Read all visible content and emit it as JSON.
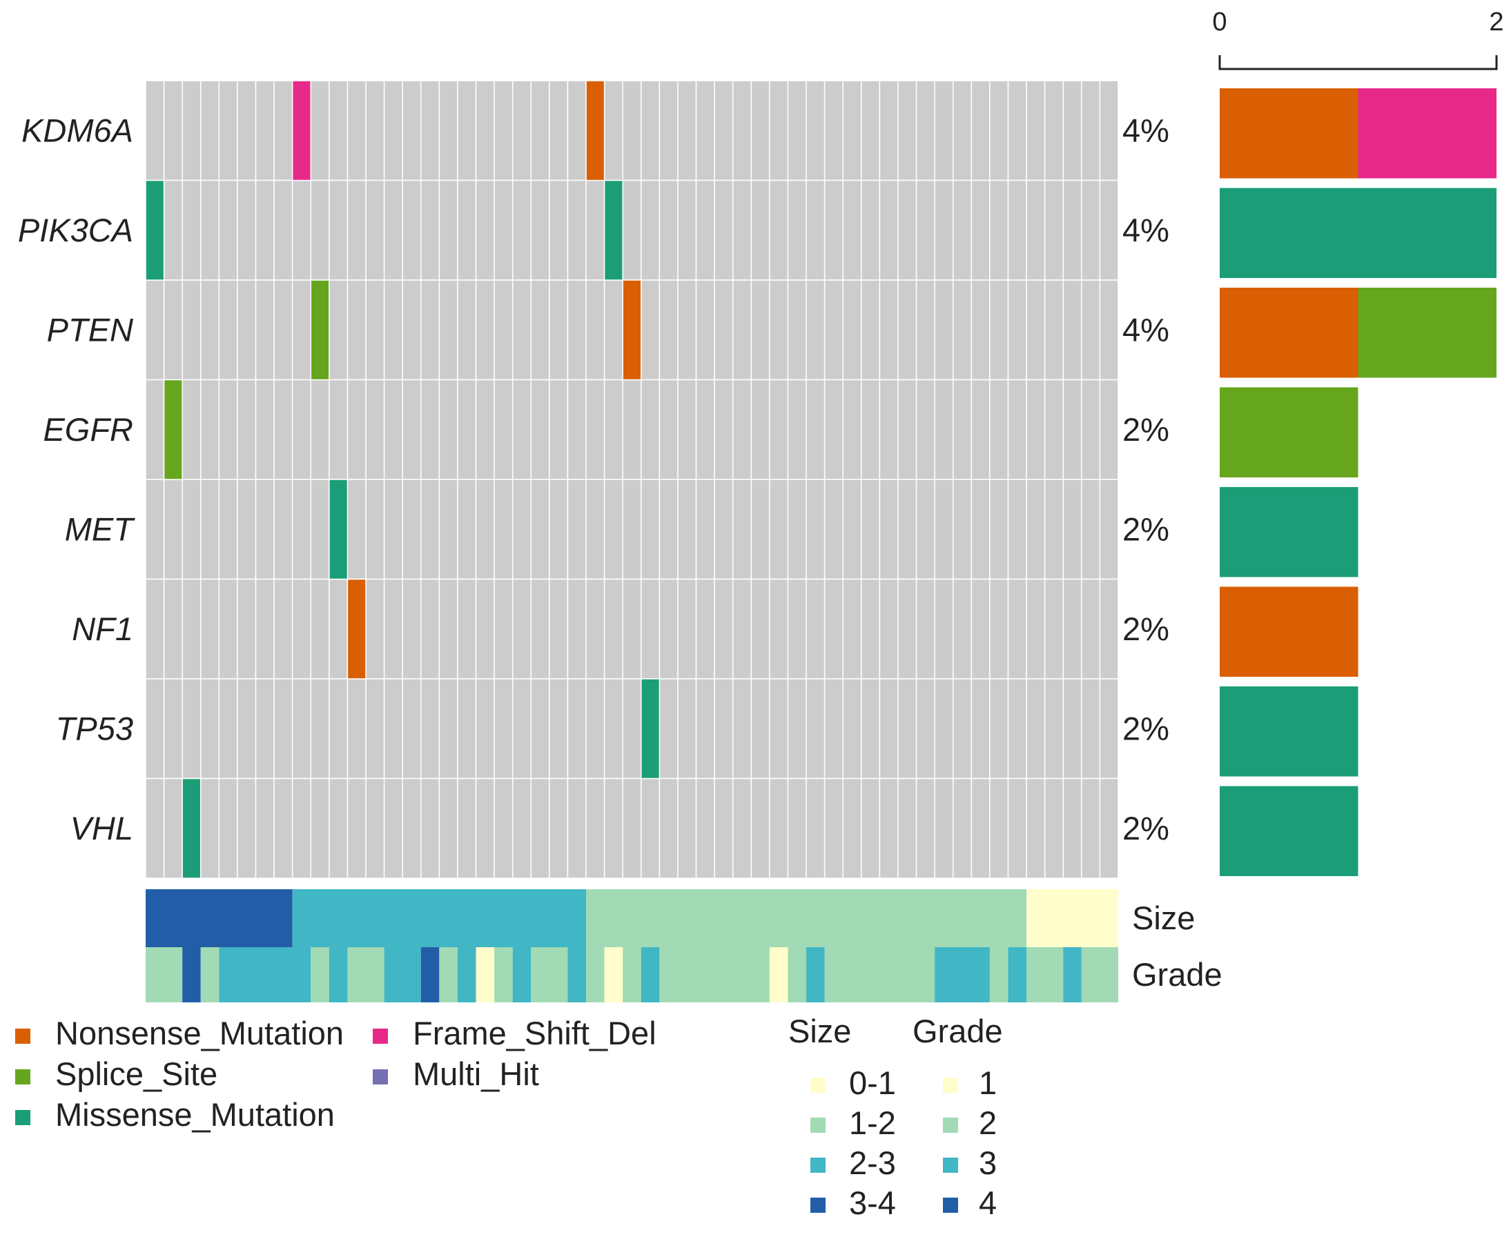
{
  "chart_data": {
    "type": "heatmap",
    "title": "",
    "n_samples": 53,
    "genes": [
      {
        "name": "KDM6A",
        "pct": "4%",
        "mutations": [
          {
            "sample": 8,
            "class": "Frame_Shift_Del"
          },
          {
            "sample": 24,
            "class": "Nonsense_Mutation"
          }
        ],
        "bar": [
          {
            "class": "Nonsense_Mutation",
            "count": 1
          },
          {
            "class": "Frame_Shift_Del",
            "count": 1
          }
        ]
      },
      {
        "name": "PIK3CA",
        "pct": "4%",
        "mutations": [
          {
            "sample": 0,
            "class": "Missense_Mutation"
          },
          {
            "sample": 25,
            "class": "Missense_Mutation"
          }
        ],
        "bar": [
          {
            "class": "Missense_Mutation",
            "count": 2
          }
        ]
      },
      {
        "name": "PTEN",
        "pct": "4%",
        "mutations": [
          {
            "sample": 9,
            "class": "Splice_Site"
          },
          {
            "sample": 26,
            "class": "Nonsense_Mutation"
          }
        ],
        "bar": [
          {
            "class": "Nonsense_Mutation",
            "count": 1
          },
          {
            "class": "Splice_Site",
            "count": 1
          }
        ]
      },
      {
        "name": "EGFR",
        "pct": "2%",
        "mutations": [
          {
            "sample": 1,
            "class": "Splice_Site"
          }
        ],
        "bar": [
          {
            "class": "Splice_Site",
            "count": 1
          }
        ]
      },
      {
        "name": "MET",
        "pct": "2%",
        "mutations": [
          {
            "sample": 10,
            "class": "Missense_Mutation"
          }
        ],
        "bar": [
          {
            "class": "Missense_Mutation",
            "count": 1
          }
        ]
      },
      {
        "name": "NF1",
        "pct": "2%",
        "mutations": [
          {
            "sample": 11,
            "class": "Nonsense_Mutation"
          }
        ],
        "bar": [
          {
            "class": "Nonsense_Mutation",
            "count": 1
          }
        ]
      },
      {
        "name": "TP53",
        "pct": "2%",
        "mutations": [
          {
            "sample": 27,
            "class": "Missense_Mutation"
          }
        ],
        "bar": [
          {
            "class": "Missense_Mutation",
            "count": 1
          }
        ]
      },
      {
        "name": "VHL",
        "pct": "2%",
        "mutations": [
          {
            "sample": 2,
            "class": "Missense_Mutation"
          }
        ],
        "bar": [
          {
            "class": "Missense_Mutation",
            "count": 1
          }
        ]
      }
    ],
    "bar_axis": {
      "min": 0,
      "max": 2,
      "tick_labels": [
        "0",
        "2"
      ]
    },
    "annotations": [
      {
        "name": "Size",
        "runs": [
          [
            "3-4",
            8
          ],
          [
            "2-3",
            16
          ],
          [
            "1-2",
            24
          ],
          [
            "0-1",
            5
          ]
        ]
      },
      {
        "name": "Grade",
        "runs": [
          [
            "2",
            2
          ],
          [
            "4",
            1
          ],
          [
            "2",
            1
          ],
          [
            "3",
            5
          ],
          [
            "2",
            1
          ],
          [
            "3",
            1
          ],
          [
            "2",
            2
          ],
          [
            "3",
            2
          ],
          [
            "4",
            1
          ],
          [
            "2",
            1
          ],
          [
            "3",
            1
          ],
          [
            "1",
            1
          ],
          [
            "2",
            1
          ],
          [
            "3",
            1
          ],
          [
            "2",
            2
          ],
          [
            "3",
            1
          ],
          [
            "2",
            1
          ],
          [
            "1",
            1
          ],
          [
            "2",
            1
          ],
          [
            "3",
            1
          ],
          [
            "2",
            6
          ],
          [
            "1",
            1
          ],
          [
            "2",
            1
          ],
          [
            "3",
            1
          ],
          [
            "2",
            6
          ],
          [
            "3",
            3
          ],
          [
            "2",
            1
          ],
          [
            "3",
            1
          ],
          [
            "2",
            2
          ],
          [
            "3",
            1
          ],
          [
            "2",
            2
          ]
        ]
      }
    ],
    "variant_legend": [
      {
        "label": "Nonsense_Mutation",
        "color": "#d95f02"
      },
      {
        "label": "Frame_Shift_Del",
        "color": "#e7298a"
      },
      {
        "label": "Splice_Site",
        "color": "#66a61e"
      },
      {
        "label": "Multi_Hit",
        "color": "#7570b3"
      },
      {
        "label": "Missense_Mutation",
        "color": "#1b9e77"
      }
    ],
    "size_legend": {
      "title": "Size",
      "items": [
        {
          "label": "0-1",
          "color": "#fffdcc"
        },
        {
          "label": "1-2",
          "color": "#a1dab4"
        },
        {
          "label": "2-3",
          "color": "#41b6c4"
        },
        {
          "label": "3-4",
          "color": "#225ea8"
        }
      ]
    },
    "grade_legend": {
      "title": "Grade",
      "items": [
        {
          "label": "1",
          "color": "#fffdcc"
        },
        {
          "label": "2",
          "color": "#a1dab4"
        },
        {
          "label": "3",
          "color": "#41b6c4"
        },
        {
          "label": "4",
          "color": "#225ea8"
        }
      ]
    },
    "colors": {
      "background_cell": "#cccccc",
      "Nonsense_Mutation": "#d95f02",
      "Frame_Shift_Del": "#e7298a",
      "Splice_Site": "#66a61e",
      "Multi_Hit": "#7570b3",
      "Missense_Mutation": "#1b9e77"
    }
  }
}
